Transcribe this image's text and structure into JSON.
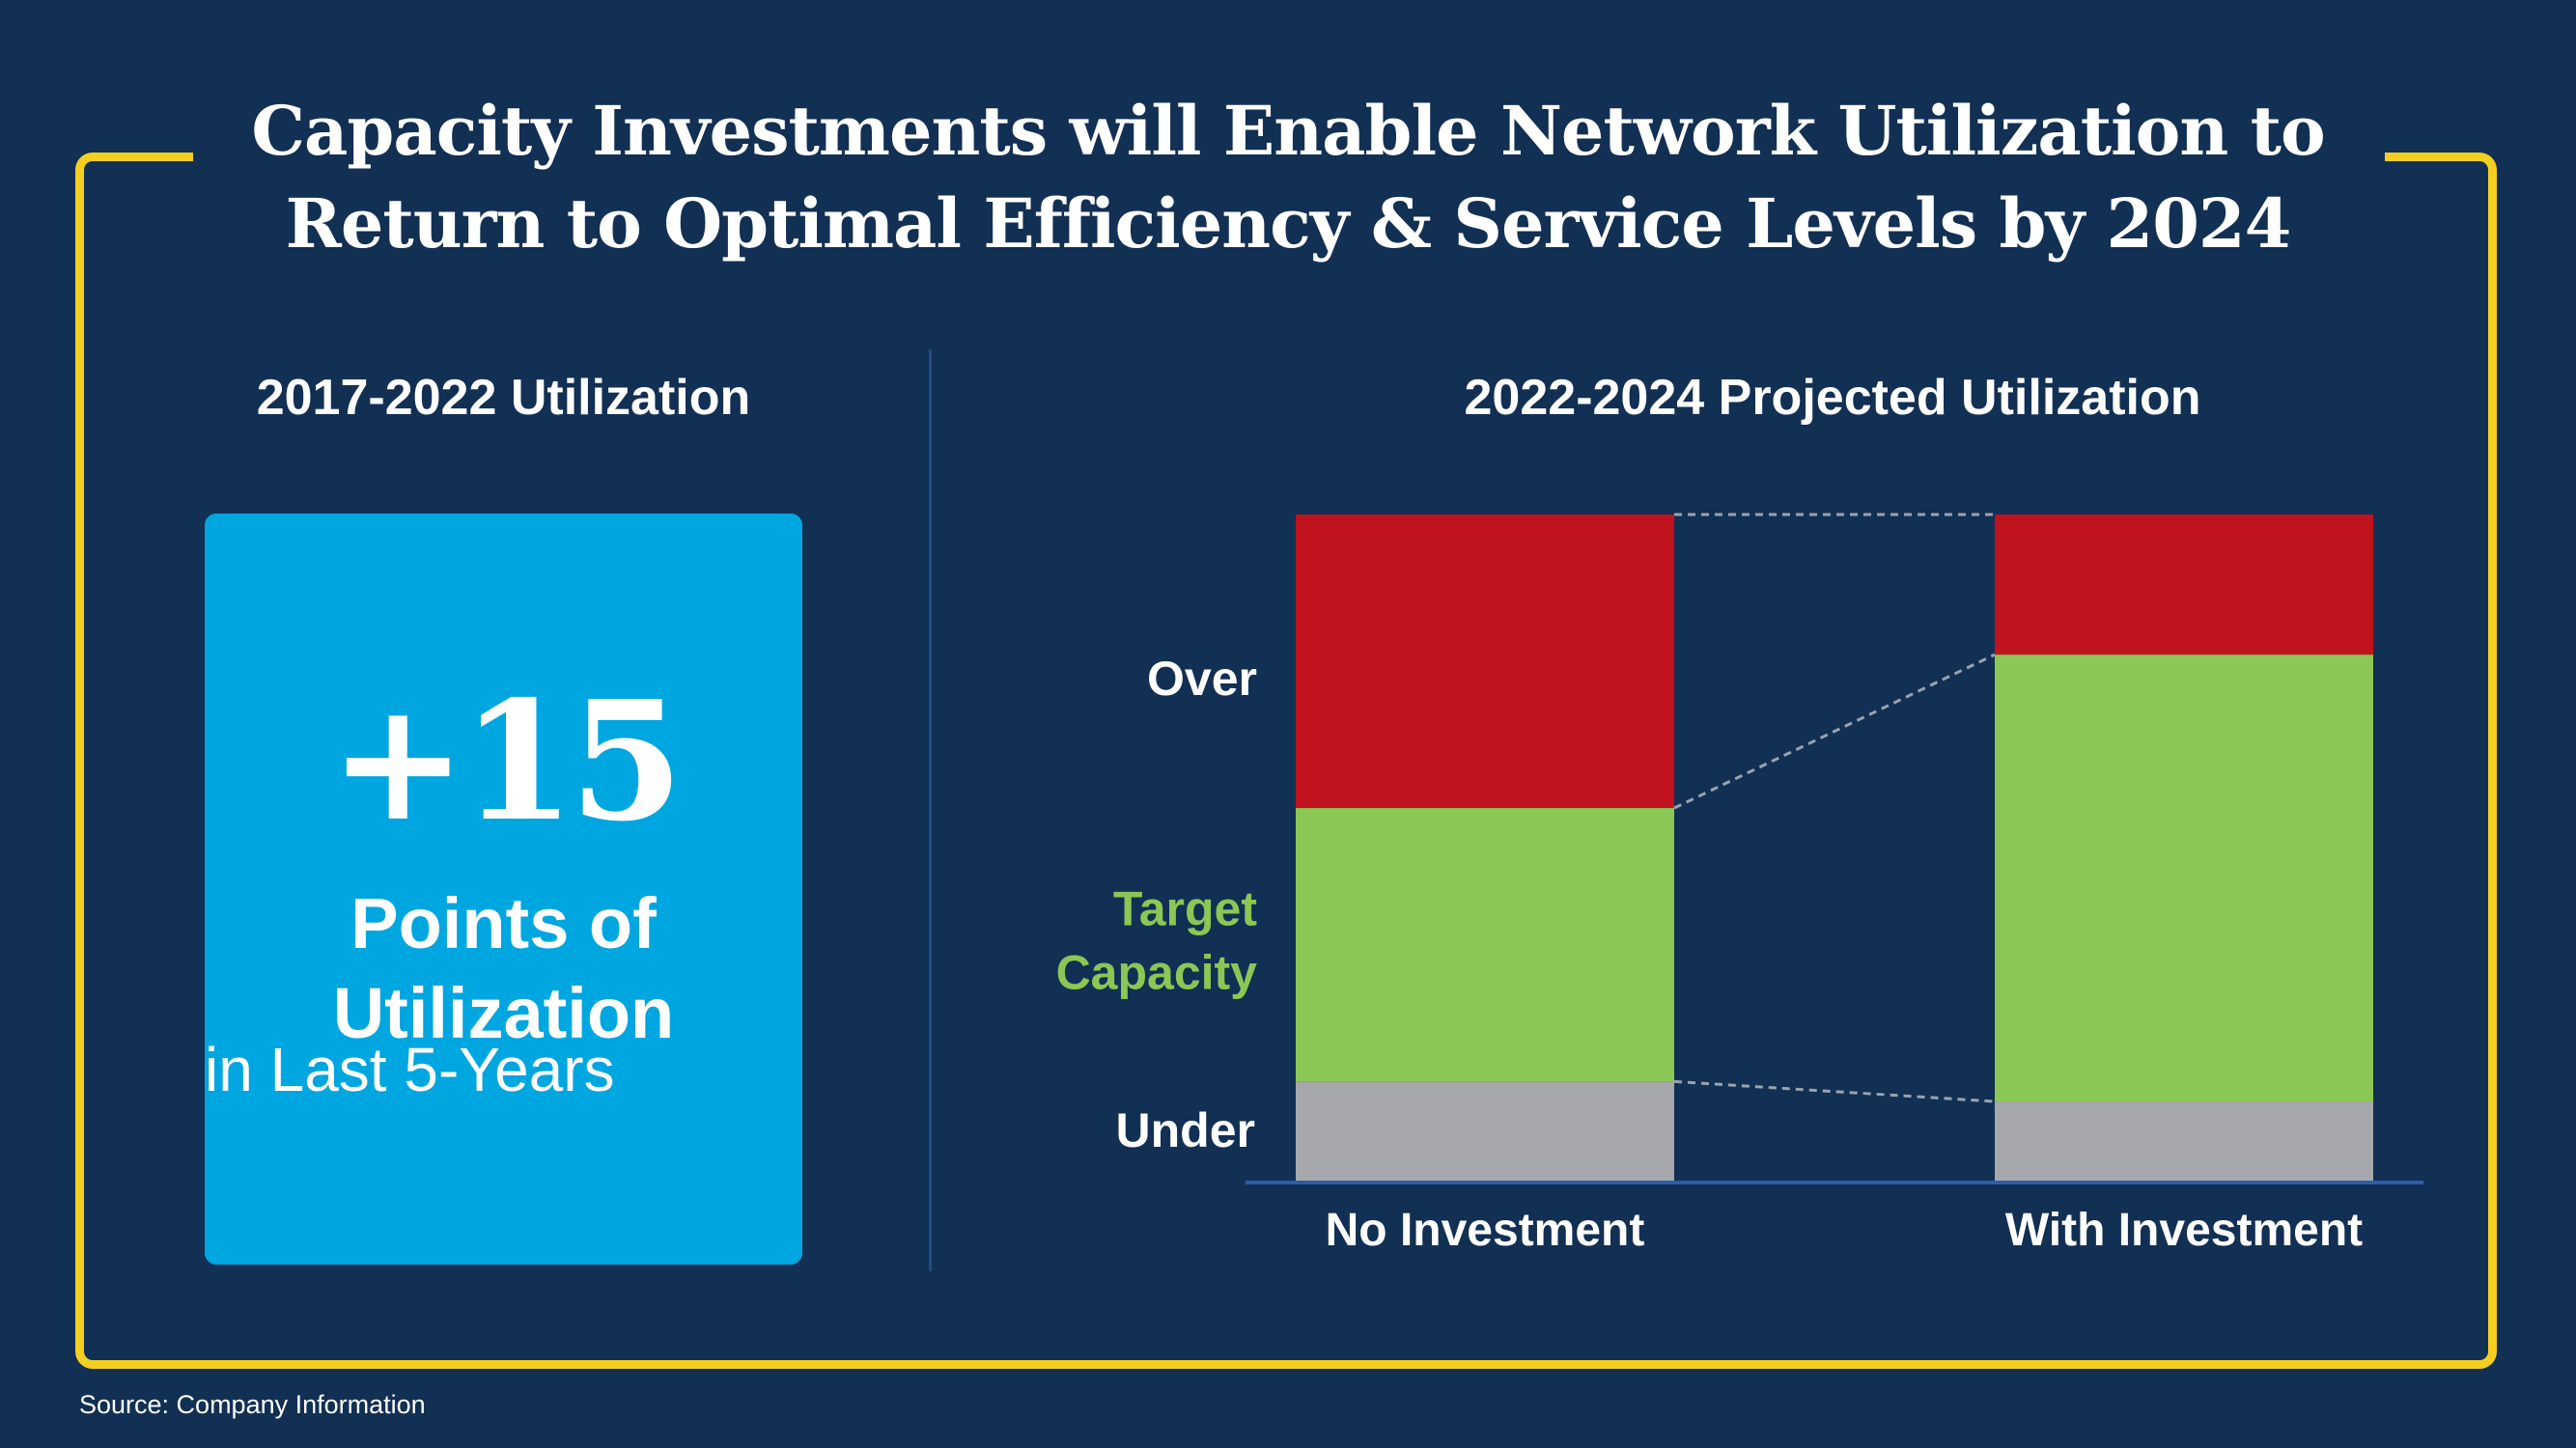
{
  "title": {
    "line1": "Capacity Investments will Enable Network Utilization to",
    "line2": "Return to Optimal Efficiency & Service Levels by 2024"
  },
  "left_panel": {
    "heading": "2017-2022 Utilization",
    "big_number": "+15",
    "line1": "Points of",
    "line2": "Utilization",
    "line3": "in Last 5-Years"
  },
  "right_panel": {
    "heading": "2022-2024 Projected Utilization"
  },
  "source": "Source:  Company Information",
  "colors": {
    "background": "#122f54",
    "frame": "#f5cf1f",
    "card": "#00a6e0",
    "over": "#c1131d",
    "target": "#8bc755",
    "under": "#a6a8ab"
  },
  "chart_data": {
    "type": "bar",
    "stacked": true,
    "title": "2022-2024 Projected Utilization",
    "categories": [
      "No Investment",
      "With Investment"
    ],
    "series": [
      {
        "name": "Under",
        "label": "Under",
        "color": "#a6a8ab",
        "values": [
          15,
          12
        ]
      },
      {
        "name": "Target Capacity",
        "label_lines": [
          "Target",
          "Capacity"
        ],
        "color": "#8bc755",
        "values": [
          41,
          67
        ]
      },
      {
        "name": "Over",
        "label": "Over",
        "color": "#c1131d",
        "values": [
          44,
          21
        ]
      }
    ],
    "ylim": [
      0,
      100
    ],
    "connector_lines": true,
    "legend": "left-side labels"
  }
}
